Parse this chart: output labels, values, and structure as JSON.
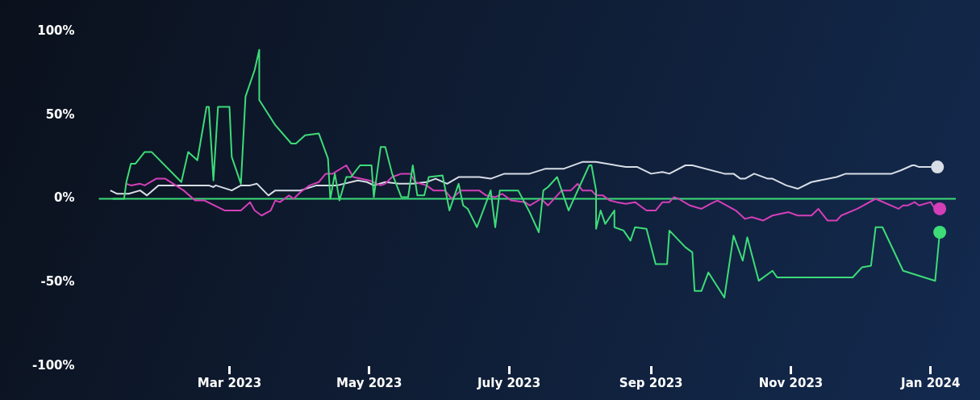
{
  "chart_data": {
    "type": "line",
    "xlim": [
      "2023-01-03",
      "2024-01-12"
    ],
    "xticks": [
      {
        "value": "2023-03-01",
        "label": "Mar 2023"
      },
      {
        "value": "2023-05-01",
        "label": "May 2023"
      },
      {
        "value": "2023-07-01",
        "label": "July 2023"
      },
      {
        "value": "2023-09-01",
        "label": "Sep 2023"
      },
      {
        "value": "2023-11-01",
        "label": "Nov 2023"
      },
      {
        "value": "2024-01-01",
        "label": "Jan 2024"
      }
    ],
    "ylim": [
      -100,
      100
    ],
    "yticks": [
      {
        "value": -100,
        "label": "-100%"
      },
      {
        "value": -50,
        "label": "-50%"
      },
      {
        "value": 0,
        "label": "0%"
      },
      {
        "value": 50,
        "label": "50%"
      },
      {
        "value": 100,
        "label": "100%"
      }
    ],
    "grid": false,
    "legend": false,
    "ref_lines": [
      {
        "axis": "y",
        "value": 0,
        "color": "#3ddc78"
      }
    ],
    "series": [
      {
        "color": "#3ddc78",
        "x": [
          "2023-01-09",
          "2023-01-14",
          "2023-01-15",
          "2023-01-17",
          "2023-01-19",
          "2023-01-23",
          "2023-01-26",
          "2023-02-08",
          "2023-02-11",
          "2023-02-15",
          "2023-02-19",
          "2023-02-20",
          "2023-02-22",
          "2023-02-24",
          "2023-03-01",
          "2023-03-02",
          "2023-03-06",
          "2023-03-08",
          "2023-03-12",
          "2023-03-14",
          "2023-03-14",
          "2023-03-21",
          "2023-03-28",
          "2023-03-30",
          "2023-04-03",
          "2023-04-09",
          "2023-04-13",
          "2023-04-14",
          "2023-04-16",
          "2023-04-18",
          "2023-04-21",
          "2023-04-23",
          "2023-04-27",
          "2023-05-02",
          "2023-05-03",
          "2023-05-06",
          "2023-05-08",
          "2023-05-11",
          "2023-05-15",
          "2023-05-18",
          "2023-05-20",
          "2023-05-22",
          "2023-05-25",
          "2023-05-27",
          "2023-06-02",
          "2023-06-05",
          "2023-06-09",
          "2023-06-11",
          "2023-06-13",
          "2023-06-17",
          "2023-06-23",
          "2023-06-25",
          "2023-06-27",
          "2023-07-05",
          "2023-07-10",
          "2023-07-14",
          "2023-07-16",
          "2023-07-18",
          "2023-07-22",
          "2023-07-27",
          "2023-08-05",
          "2023-08-06",
          "2023-08-08",
          "2023-08-08",
          "2023-08-10",
          "2023-08-12",
          "2023-08-16",
          "2023-08-16",
          "2023-08-20",
          "2023-08-23",
          "2023-08-25",
          "2023-08-30",
          "2023-09-03",
          "2023-09-08",
          "2023-09-09",
          "2023-09-16",
          "2023-09-19",
          "2023-09-20",
          "2023-09-23",
          "2023-09-26",
          "2023-10-03",
          "2023-10-07",
          "2023-10-11",
          "2023-10-13",
          "2023-10-18",
          "2023-10-24",
          "2023-10-26",
          "2023-11-28",
          "2023-12-02",
          "2023-12-06",
          "2023-12-08",
          "2023-12-11",
          "2023-12-20",
          "2024-01-03",
          "2024-01-05"
        ],
        "values": [
          0,
          0,
          10,
          21,
          21,
          28,
          28,
          10,
          28,
          23,
          55,
          55,
          11,
          55,
          55,
          25,
          9,
          61,
          77,
          89,
          59,
          44,
          33,
          33,
          38,
          39,
          24,
          0,
          15,
          -1,
          13,
          13,
          20,
          20,
          1,
          31,
          31,
          15,
          1,
          1,
          20,
          2,
          2,
          13,
          14,
          -7,
          9,
          -4,
          -6,
          -17,
          5,
          -17,
          5,
          5,
          -8,
          -20,
          5,
          7,
          13,
          -7,
          20,
          20,
          5,
          -18,
          -7,
          -15,
          -7,
          -17,
          -19,
          -25,
          -17,
          -18,
          -39,
          -39,
          -19,
          -29,
          -32,
          -55,
          -55,
          -44,
          -59,
          -22,
          -37,
          -23,
          -49,
          -43,
          -47,
          -47,
          -41,
          -40,
          -17,
          -17,
          -43,
          -49,
          -20
        ]
      },
      {
        "color": "#d43fb8",
        "x": [
          "2023-01-15",
          "2023-01-17",
          "2023-01-21",
          "2023-01-23",
          "2023-01-28",
          "2023-02-01",
          "2023-02-09",
          "2023-02-14",
          "2023-02-18",
          "2023-02-27",
          "2023-03-06",
          "2023-03-10",
          "2023-03-12",
          "2023-03-15",
          "2023-03-19",
          "2023-03-21",
          "2023-03-23",
          "2023-03-27",
          "2023-03-29",
          "2023-04-01",
          "2023-04-05",
          "2023-04-09",
          "2023-04-12",
          "2023-04-15",
          "2023-04-21",
          "2023-04-24",
          "2023-05-01",
          "2023-05-06",
          "2023-05-08",
          "2023-05-11",
          "2023-05-15",
          "2023-05-17",
          "2023-05-19",
          "2023-05-21",
          "2023-05-26",
          "2023-05-29",
          "2023-06-03",
          "2023-06-06",
          "2023-06-10",
          "2023-06-18",
          "2023-06-21",
          "2023-06-25",
          "2023-06-28",
          "2023-07-02",
          "2023-07-08",
          "2023-07-10",
          "2023-07-15",
          "2023-07-18",
          "2023-07-22",
          "2023-07-24",
          "2023-07-28",
          "2023-07-31",
          "2023-08-02",
          "2023-08-06",
          "2023-08-08",
          "2023-08-11",
          "2023-08-14",
          "2023-08-17",
          "2023-08-21",
          "2023-08-25",
          "2023-08-30",
          "2023-09-03",
          "2023-09-06",
          "2023-09-09",
          "2023-09-11",
          "2023-09-13",
          "2023-09-18",
          "2023-09-23",
          "2023-09-27",
          "2023-09-30",
          "2023-10-04",
          "2023-10-08",
          "2023-10-12",
          "2023-10-15",
          "2023-10-20",
          "2023-10-24",
          "2023-10-31",
          "2023-11-04",
          "2023-11-10",
          "2023-11-13",
          "2023-11-17",
          "2023-11-21",
          "2023-11-23",
          "2023-11-30",
          "2023-12-08",
          "2023-12-18",
          "2023-12-20",
          "2023-12-22",
          "2023-12-25",
          "2023-12-27",
          "2024-01-01",
          "2024-01-03",
          "2024-01-05"
        ],
        "values": [
          9,
          8,
          9,
          8,
          12,
          12,
          5,
          -1,
          -1,
          -7,
          -7,
          -2,
          -7,
          -10,
          -7,
          -1,
          -2,
          2,
          0,
          4,
          8,
          10,
          15,
          15,
          20,
          13,
          11,
          8,
          9,
          13,
          15,
          15,
          15,
          10,
          8,
          5,
          5,
          0,
          5,
          5,
          2,
          1,
          3,
          -1,
          -2,
          -4,
          0,
          -4,
          2,
          5,
          5,
          9,
          5,
          5,
          2,
          2,
          -1,
          -2,
          -3,
          -2,
          -7,
          -7,
          -2,
          -2,
          1,
          0,
          -4,
          -6,
          -3,
          -1,
          -4,
          -7,
          -12,
          -11,
          -13,
          -10,
          -8,
          -10,
          -10,
          -6,
          -13,
          -13,
          -10,
          -6,
          0,
          -6,
          -4,
          -4,
          -2,
          -4,
          -2,
          -6,
          -6
        ]
      },
      {
        "color": "#d8dde6",
        "x": [
          "2023-01-08",
          "2023-01-11",
          "2023-01-16",
          "2023-01-21",
          "2023-01-24",
          "2023-01-29",
          "2023-02-20",
          "2023-02-22",
          "2023-02-23",
          "2023-03-02",
          "2023-03-06",
          "2023-03-10",
          "2023-03-13",
          "2023-03-18",
          "2023-03-21",
          "2023-04-01",
          "2023-04-08",
          "2023-04-17",
          "2023-04-26",
          "2023-04-30",
          "2023-05-03",
          "2023-05-08",
          "2023-05-14",
          "2023-05-20",
          "2023-05-26",
          "2023-05-30",
          "2023-06-04",
          "2023-06-09",
          "2023-06-18",
          "2023-06-23",
          "2023-06-29",
          "2023-07-10",
          "2023-07-17",
          "2023-07-25",
          "2023-08-02",
          "2023-08-08",
          "2023-08-21",
          "2023-08-26",
          "2023-09-01",
          "2023-09-06",
          "2023-09-09",
          "2023-09-16",
          "2023-09-19",
          "2023-10-03",
          "2023-10-07",
          "2023-10-10",
          "2023-10-12",
          "2023-10-16",
          "2023-10-22",
          "2023-10-24",
          "2023-10-30",
          "2023-11-04",
          "2023-11-10",
          "2023-11-21",
          "2023-11-25",
          "2023-12-15",
          "2023-12-19",
          "2023-12-24",
          "2023-12-25",
          "2023-12-27",
          "2024-01-01",
          "2024-01-04"
        ],
        "values": [
          5,
          3,
          3,
          5,
          2,
          8,
          8,
          7,
          8,
          5,
          8,
          8,
          9,
          2,
          5,
          5,
          8,
          8,
          11,
          10,
          8,
          10,
          9,
          9,
          10,
          12,
          9,
          13,
          13,
          12,
          15,
          15,
          18,
          18,
          22,
          22,
          19,
          19,
          15,
          16,
          15,
          20,
          20,
          15,
          15,
          12,
          12,
          15,
          12,
          12,
          8,
          6,
          10,
          13,
          15,
          15,
          17,
          20,
          20,
          19,
          19,
          19
        ]
      }
    ]
  }
}
